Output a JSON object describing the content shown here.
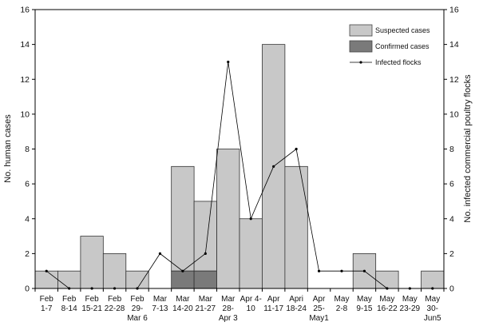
{
  "chart_data": {
    "type": "bar",
    "categories": [
      [
        "Feb",
        "1-7"
      ],
      [
        "Feb",
        "8-14"
      ],
      [
        "Feb",
        "15-21"
      ],
      [
        "Feb",
        "22-28"
      ],
      [
        "Feb",
        "29-",
        "Mar 6"
      ],
      [
        "Mar",
        "7-13"
      ],
      [
        "Mar",
        "14-20"
      ],
      [
        "Mar",
        "21-27"
      ],
      [
        "Mar",
        "28-",
        "Apr 3"
      ],
      [
        "Apr 4-",
        "10"
      ],
      [
        "Apr",
        "11-17"
      ],
      [
        "Apri",
        "18-24"
      ],
      [
        "Apr",
        "25-",
        "May1"
      ],
      [
        "May",
        "2-8"
      ],
      [
        "May",
        "9-15"
      ],
      [
        "May",
        "16-22"
      ],
      [
        "May",
        "23-29"
      ],
      [
        "May",
        "30-",
        "Jun5"
      ]
    ],
    "series": [
      {
        "name": "Suspected cases",
        "type": "bar",
        "color": "#c8c8c8",
        "values": [
          1,
          1,
          3,
          2,
          1,
          0,
          7,
          5,
          8,
          4,
          14,
          7,
          0,
          0,
          2,
          1,
          0,
          1
        ]
      },
      {
        "name": "Confirmed cases",
        "type": "bar",
        "color": "#7a7a7a",
        "values": [
          0,
          0,
          0,
          0,
          0,
          0,
          1,
          1,
          0,
          0,
          0,
          0,
          0,
          0,
          0,
          0,
          0,
          0
        ]
      },
      {
        "name": "Infected flocks",
        "type": "line",
        "axis": "right",
        "color": "#000000",
        "values": [
          1,
          0,
          0,
          0,
          0,
          2,
          1,
          2,
          13,
          4,
          7,
          8,
          1,
          1,
          1,
          0,
          0,
          0
        ]
      }
    ],
    "ylabel": "No. human cases",
    "y2label": "No. infected commercial poultry flocks",
    "ylim": [
      0,
      16
    ],
    "y2lim": [
      0,
      16
    ],
    "yticks": [
      0,
      2,
      4,
      6,
      8,
      10,
      12,
      14,
      16
    ],
    "legend_position": "top-right",
    "grid": false
  }
}
